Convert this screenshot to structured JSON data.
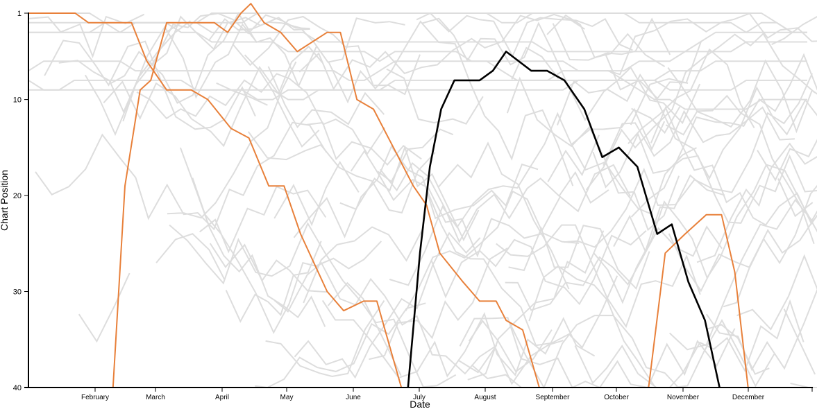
{
  "chart_data": {
    "type": "line",
    "title": "",
    "xlabel": "Date",
    "ylabel": "Chart Position",
    "x_ticks": [
      "February",
      "March",
      "April",
      "May",
      "June",
      "July",
      "August",
      "September",
      "October",
      "November",
      "December"
    ],
    "y_ticks": [
      1,
      10,
      20,
      30,
      40
    ],
    "ylim": [
      1,
      40
    ],
    "y_inverted": true,
    "grid": false,
    "legend": "none",
    "colors": {
      "background_lines": "#dddddd",
      "highlight_orange": "#e8803a",
      "highlight_black": "#000000",
      "axis": "#000000"
    },
    "highlighted_series": [
      {
        "color": "#e8803a",
        "points": [
          [
            0.0,
            1
          ],
          [
            0.7,
            1
          ],
          [
            0.9,
            2
          ],
          [
            1.55,
            2
          ],
          [
            1.78,
            6
          ]
        ]
      },
      {
        "color": "#e8803a",
        "points": [
          [
            1.27,
            40
          ],
          [
            1.45,
            19
          ],
          [
            1.68,
            9
          ],
          [
            1.84,
            8
          ],
          [
            2.08,
            2
          ],
          [
            2.8,
            2
          ],
          [
            3.0,
            3
          ],
          [
            3.2,
            1
          ],
          [
            3.35,
            0
          ],
          [
            3.55,
            2
          ],
          [
            3.8,
            3
          ],
          [
            4.05,
            5
          ],
          [
            4.5,
            3
          ],
          [
            4.7,
            3
          ],
          [
            4.95,
            10
          ],
          [
            5.2,
            11
          ],
          [
            5.5,
            15
          ],
          [
            5.8,
            19
          ],
          [
            6.0,
            21
          ],
          [
            6.2,
            26
          ],
          [
            6.55,
            29
          ],
          [
            6.8,
            31
          ],
          [
            7.05,
            31
          ],
          [
            7.2,
            33
          ],
          [
            7.45,
            34
          ],
          [
            7.7,
            40
          ]
        ]
      },
      {
        "color": "#e8803a",
        "points": [
          [
            1.78,
            6
          ],
          [
            2.08,
            9
          ],
          [
            2.45,
            9
          ],
          [
            2.7,
            10
          ],
          [
            3.05,
            13
          ],
          [
            3.32,
            14
          ],
          [
            3.62,
            19
          ],
          [
            3.85,
            19
          ],
          [
            4.1,
            24
          ],
          [
            4.5,
            30
          ],
          [
            4.75,
            32
          ],
          [
            5.05,
            31
          ],
          [
            5.25,
            31
          ],
          [
            5.62,
            40
          ]
        ]
      },
      {
        "color": "#e8803a",
        "points": [
          [
            9.35,
            40
          ],
          [
            9.6,
            26
          ],
          [
            9.9,
            24
          ],
          [
            10.22,
            22
          ],
          [
            10.45,
            22
          ],
          [
            10.65,
            28
          ],
          [
            10.85,
            40
          ]
        ]
      },
      {
        "color": "#000000",
        "points": [
          [
            5.72,
            40
          ],
          [
            5.9,
            26
          ],
          [
            6.05,
            17
          ],
          [
            6.22,
            11
          ],
          [
            6.42,
            8
          ],
          [
            6.8,
            8
          ],
          [
            7.0,
            7
          ],
          [
            7.2,
            5
          ],
          [
            7.58,
            7
          ],
          [
            7.82,
            7
          ],
          [
            8.08,
            8
          ],
          [
            8.38,
            11
          ],
          [
            8.65,
            16
          ],
          [
            8.9,
            15
          ],
          [
            9.18,
            17
          ],
          [
            9.48,
            24
          ],
          [
            9.7,
            23
          ],
          [
            9.95,
            29
          ],
          [
            10.2,
            33
          ],
          [
            10.42,
            40
          ]
        ]
      }
    ]
  }
}
